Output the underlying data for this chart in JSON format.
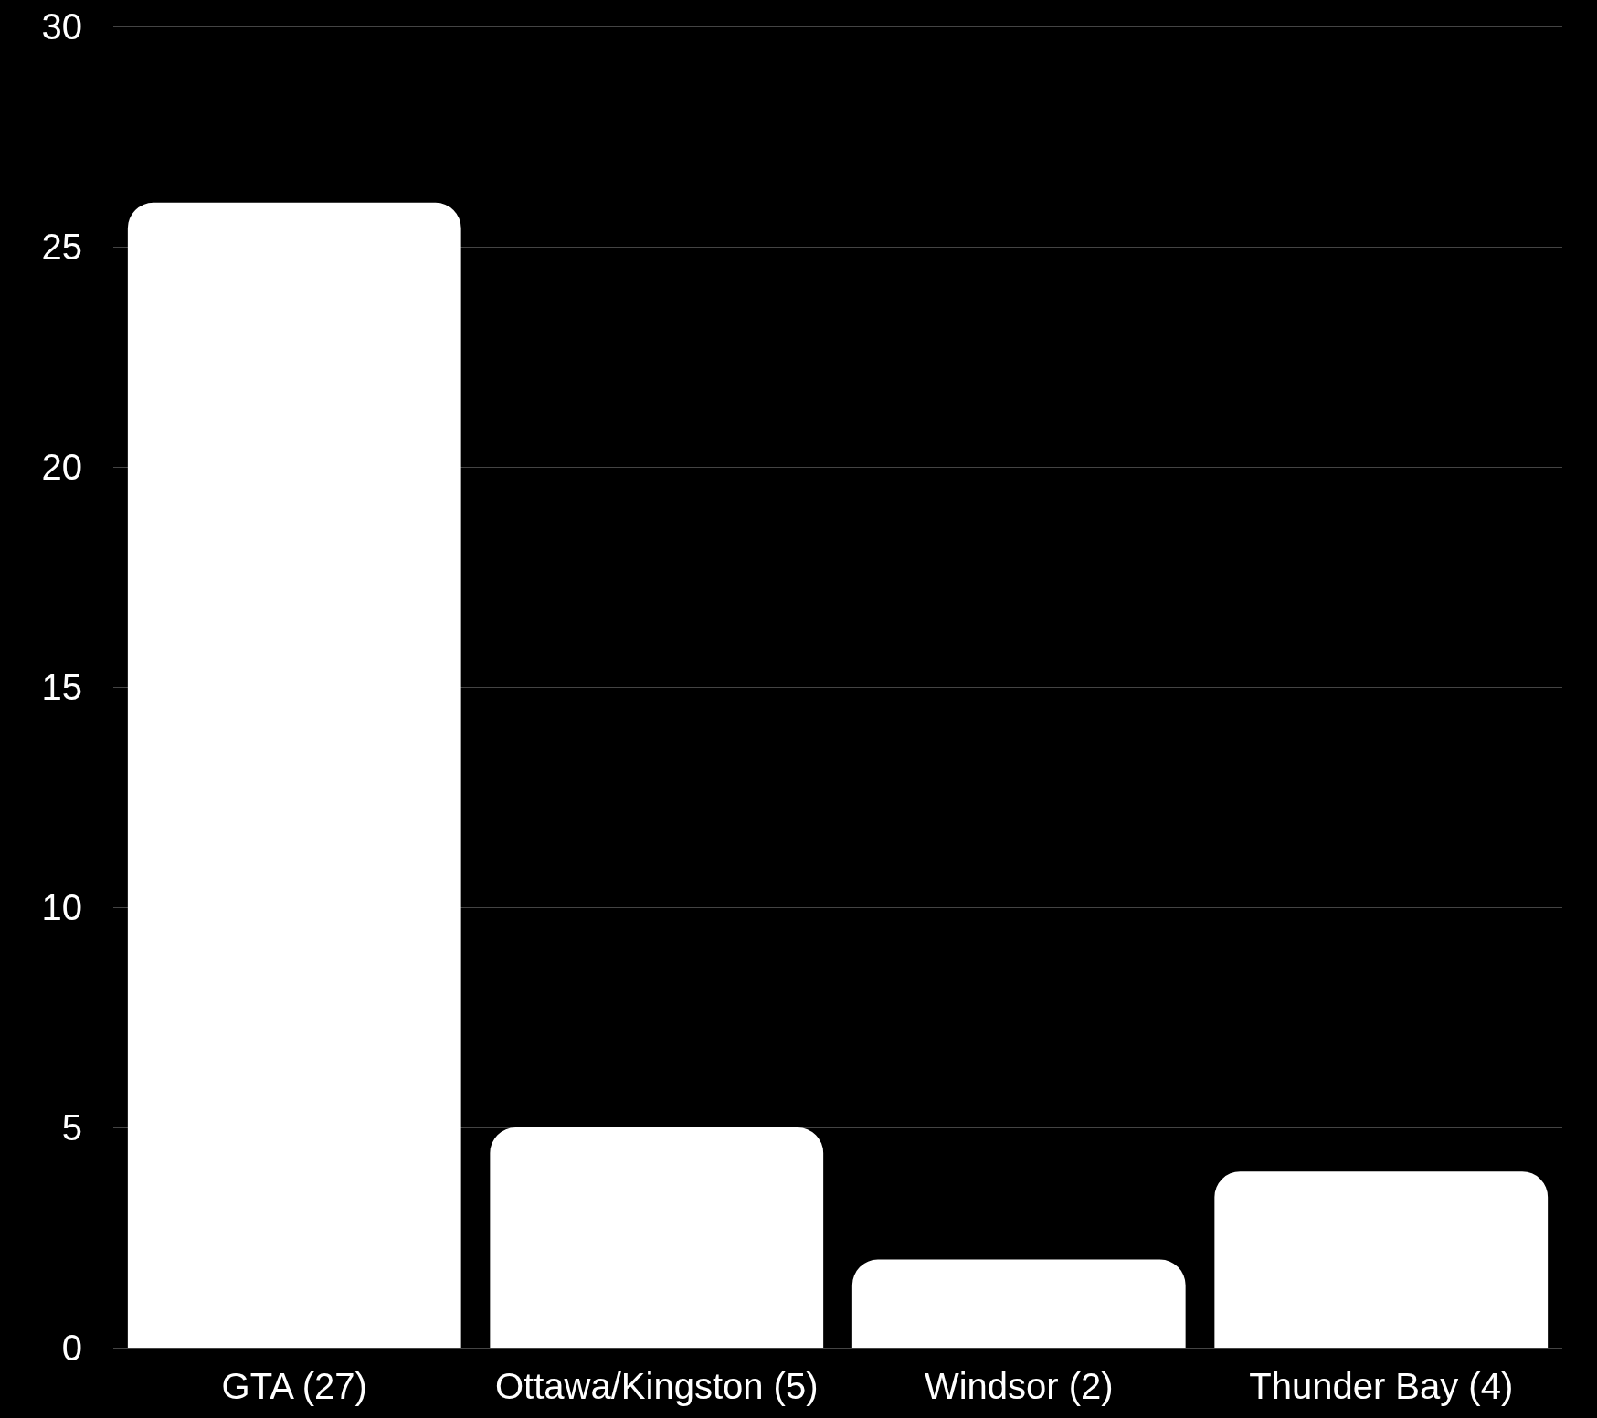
{
  "chart_data": {
    "type": "bar",
    "categories": [
      "GTA (27)",
      "Ottawa/Kingston (5)",
      "Windsor (2)",
      "Thunder Bay (4)"
    ],
    "values": [
      26,
      5,
      2,
      4
    ],
    "color": "#ffffff",
    "ylim": [
      0,
      30
    ],
    "yticks": [
      0,
      5,
      10,
      15,
      20,
      25,
      30
    ],
    "grid": "y"
  }
}
